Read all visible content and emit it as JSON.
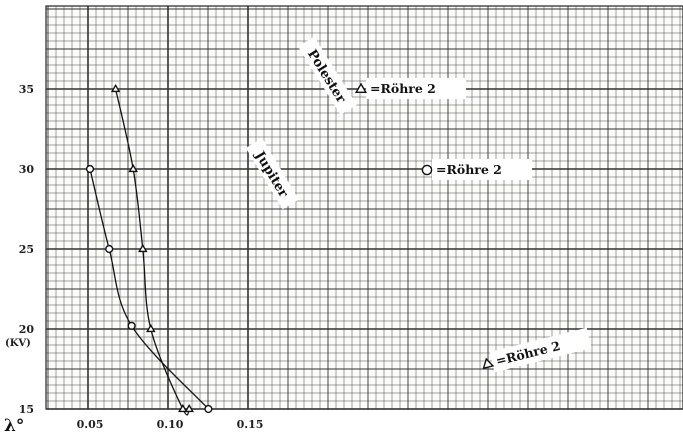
{
  "chart_data": {
    "type": "line",
    "x_axis": {
      "symbol": "λ°",
      "ticks": [
        {
          "value": 0.05,
          "label": "0.05"
        },
        {
          "value": 0.1,
          "label": "0.10"
        },
        {
          "value": 0.15,
          "label": "0.15"
        }
      ],
      "range": [
        0.0,
        0.16
      ]
    },
    "y_axis": {
      "unit": "(KV)",
      "ticks": [
        {
          "value": 15,
          "label": "15"
        },
        {
          "value": 20,
          "label": "20"
        },
        {
          "value": 25,
          "label": "25"
        },
        {
          "value": 30,
          "label": "30"
        },
        {
          "value": 35,
          "label": "35"
        }
      ],
      "range": [
        10,
        35
      ]
    },
    "grid": true,
    "series": [
      {
        "name": "Jupiter",
        "marker": "circle",
        "points": [
          [
            0.05,
            30.0
          ],
          [
            0.062,
            25.0
          ],
          [
            0.076,
            20.2
          ],
          [
            0.124,
            15.0
          ]
        ]
      },
      {
        "name": "Polester",
        "marker": "triangle",
        "points": [
          [
            0.066,
            35.0
          ],
          [
            0.077,
            30.0
          ],
          [
            0.083,
            25.0
          ],
          [
            0.088,
            20.0
          ],
          [
            0.108,
            15.0
          ],
          [
            0.112,
            15.0
          ]
        ]
      }
    ],
    "annotations": [
      {
        "marker": "triangle",
        "text": "=Röhre 2"
      },
      {
        "marker": "circle",
        "text": "=Röhre 2"
      },
      {
        "marker": "triangle",
        "text": "=Röhre 2"
      }
    ]
  }
}
